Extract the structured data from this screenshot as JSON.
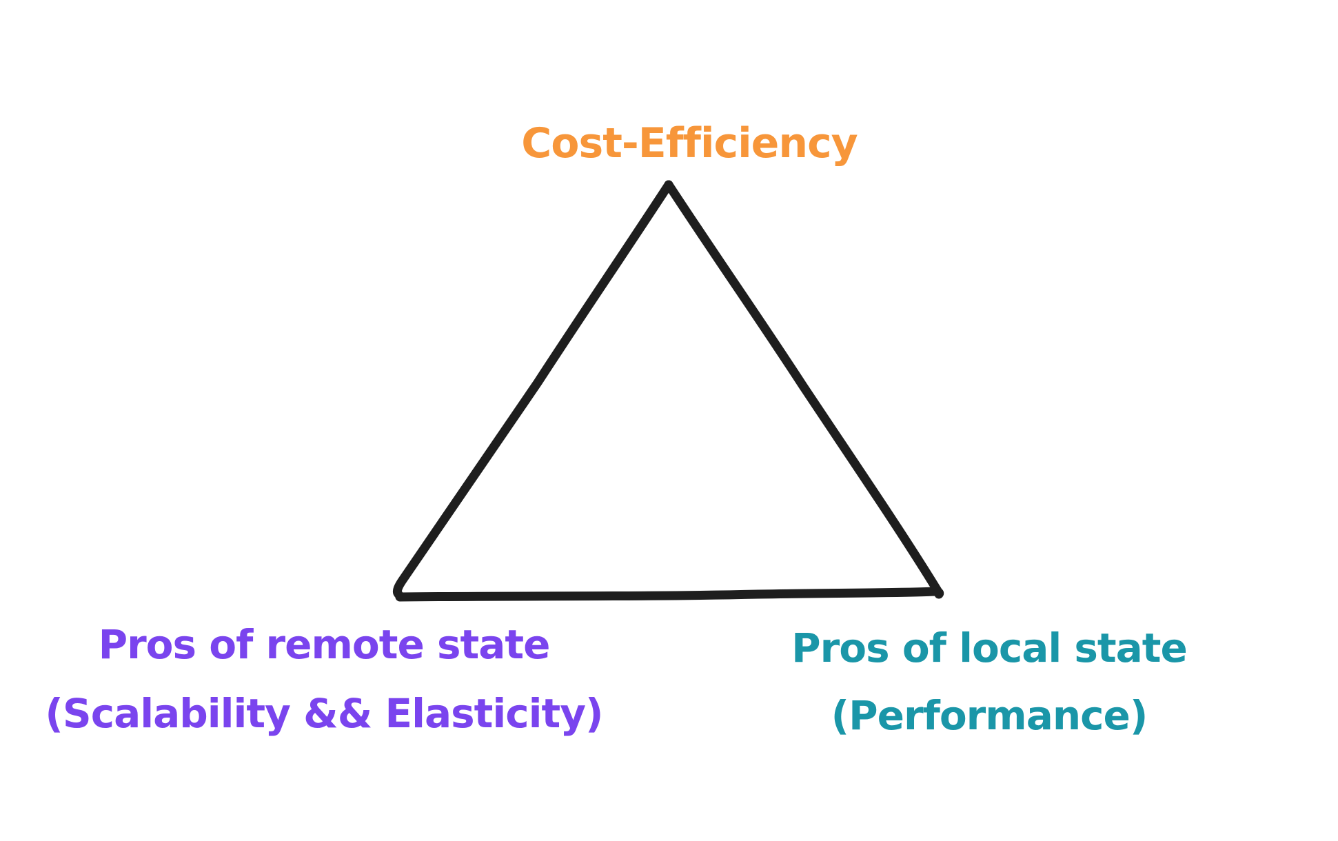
{
  "diagram": {
    "top_label": "Cost-Efficiency",
    "left_label": {
      "line1": "Pros of remote state",
      "line2": "(Scalability && Elasticity)"
    },
    "right_label": {
      "line1": "Pros of local state",
      "line2": "(Performance)"
    }
  },
  "colors": {
    "top": "#f7963a",
    "left": "#7a44ee",
    "right": "#1a96a8",
    "stroke": "#1e1e1e",
    "background": "#ffffff"
  }
}
